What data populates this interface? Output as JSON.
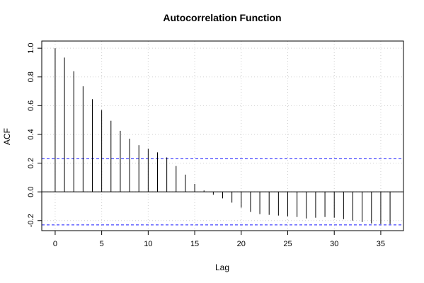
{
  "chart_data": {
    "type": "bar",
    "title": "Autocorrelation Function",
    "xlabel": "Lag",
    "ylabel": "ACF",
    "xlim": [
      -1.44,
      37.44
    ],
    "ylim": [
      -0.27,
      1.05
    ],
    "x_ticks": [
      0,
      5,
      10,
      15,
      20,
      25,
      30,
      35
    ],
    "y_ticks": [
      -0.2,
      0.0,
      0.2,
      0.4,
      0.6,
      0.8,
      1.0
    ],
    "grid": true,
    "confidence_bounds": [
      0.23,
      -0.23
    ],
    "lags": [
      0,
      1,
      2,
      3,
      4,
      5,
      6,
      7,
      8,
      9,
      10,
      11,
      12,
      13,
      14,
      15,
      16,
      17,
      18,
      19,
      20,
      21,
      22,
      23,
      24,
      25,
      26,
      27,
      28,
      29,
      30,
      31,
      32,
      33,
      34,
      35,
      36
    ],
    "acf": [
      1.0,
      0.935,
      0.84,
      0.735,
      0.645,
      0.57,
      0.495,
      0.425,
      0.37,
      0.325,
      0.3,
      0.275,
      0.24,
      0.18,
      0.12,
      0.055,
      0.01,
      -0.02,
      -0.045,
      -0.075,
      -0.11,
      -0.14,
      -0.155,
      -0.16,
      -0.165,
      -0.17,
      -0.175,
      -0.185,
      -0.18,
      -0.175,
      -0.18,
      -0.19,
      -0.2,
      -0.21,
      -0.22,
      -0.225,
      -0.225
    ]
  },
  "colors": {
    "bars": "#000000",
    "confidence": "#1a1aff",
    "grid": "#cfcfcf",
    "zero_line": "#000000"
  }
}
